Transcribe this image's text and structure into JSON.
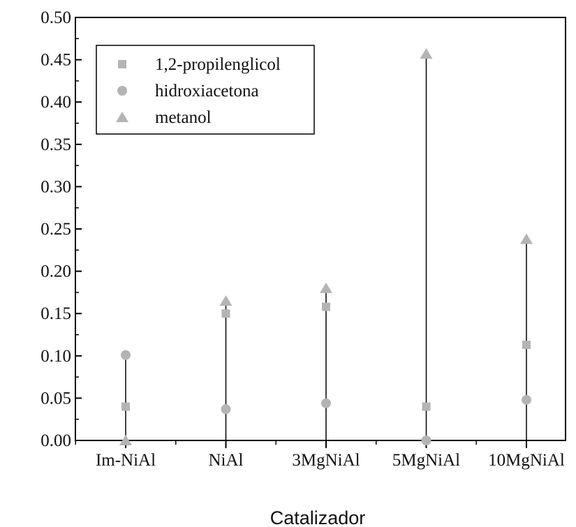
{
  "chart_data": {
    "type": "scatter",
    "title": "",
    "xlabel": "Catalizador",
    "ylabel": "",
    "categories": [
      "Im-NiAl",
      "NiAl",
      "3MgNiAl",
      "5MgNiAl",
      "10MgNiAl"
    ],
    "ylim": [
      0,
      0.5
    ],
    "yticks": [
      "0.00",
      "0.05",
      "0.10",
      "0.15",
      "0.20",
      "0.25",
      "0.30",
      "0.35",
      "0.40",
      "0.45",
      "0.50"
    ],
    "grid": false,
    "legend_position": "top-left",
    "series": [
      {
        "name": "1,2-propilenglicol",
        "marker": "square",
        "values": [
          0.04,
          0.15,
          0.158,
          0.04,
          0.113
        ]
      },
      {
        "name": "hidroxiacetona",
        "marker": "circle",
        "values": [
          0.101,
          0.037,
          0.044,
          0.0,
          0.048
        ]
      },
      {
        "name": "metanol",
        "marker": "triangle",
        "values": [
          0.0,
          0.165,
          0.18,
          0.457,
          0.238
        ]
      }
    ],
    "colors": {
      "marker": "#b4b4b4",
      "line": "#000000",
      "axis": "#000000"
    }
  }
}
